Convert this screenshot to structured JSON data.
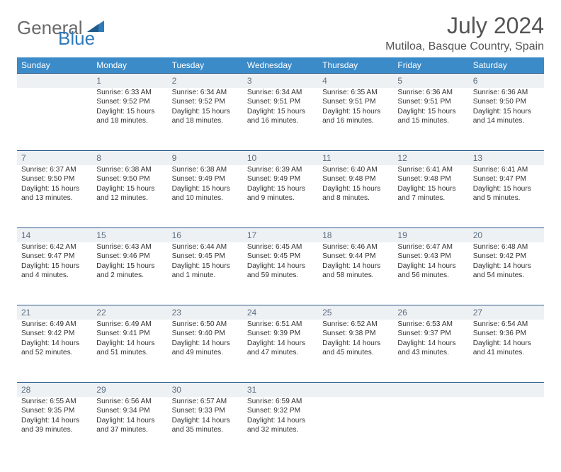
{
  "logo": {
    "word1": "General",
    "word2": "Blue"
  },
  "title": "July 2024",
  "location": "Mutiloa, Basque Country, Spain",
  "colors": {
    "header_bg": "#3b8bc9",
    "header_text": "#ffffff",
    "daynum_bg": "#eef1f4",
    "daynum_border": "#2a5a8a",
    "daynum_color": "#5d6e80",
    "body_text": "#333333",
    "logo_gray": "#6a6a6a",
    "logo_blue": "#2f7ab8",
    "title_color": "#555555"
  },
  "day_headers": [
    "Sunday",
    "Monday",
    "Tuesday",
    "Wednesday",
    "Thursday",
    "Friday",
    "Saturday"
  ],
  "weeks": [
    [
      {
        "n": "",
        "l1": "",
        "l2": "",
        "l3": "",
        "l4": ""
      },
      {
        "n": "1",
        "l1": "Sunrise: 6:33 AM",
        "l2": "Sunset: 9:52 PM",
        "l3": "Daylight: 15 hours",
        "l4": "and 18 minutes."
      },
      {
        "n": "2",
        "l1": "Sunrise: 6:34 AM",
        "l2": "Sunset: 9:52 PM",
        "l3": "Daylight: 15 hours",
        "l4": "and 18 minutes."
      },
      {
        "n": "3",
        "l1": "Sunrise: 6:34 AM",
        "l2": "Sunset: 9:51 PM",
        "l3": "Daylight: 15 hours",
        "l4": "and 16 minutes."
      },
      {
        "n": "4",
        "l1": "Sunrise: 6:35 AM",
        "l2": "Sunset: 9:51 PM",
        "l3": "Daylight: 15 hours",
        "l4": "and 16 minutes."
      },
      {
        "n": "5",
        "l1": "Sunrise: 6:36 AM",
        "l2": "Sunset: 9:51 PM",
        "l3": "Daylight: 15 hours",
        "l4": "and 15 minutes."
      },
      {
        "n": "6",
        "l1": "Sunrise: 6:36 AM",
        "l2": "Sunset: 9:50 PM",
        "l3": "Daylight: 15 hours",
        "l4": "and 14 minutes."
      }
    ],
    [
      {
        "n": "7",
        "l1": "Sunrise: 6:37 AM",
        "l2": "Sunset: 9:50 PM",
        "l3": "Daylight: 15 hours",
        "l4": "and 13 minutes."
      },
      {
        "n": "8",
        "l1": "Sunrise: 6:38 AM",
        "l2": "Sunset: 9:50 PM",
        "l3": "Daylight: 15 hours",
        "l4": "and 12 minutes."
      },
      {
        "n": "9",
        "l1": "Sunrise: 6:38 AM",
        "l2": "Sunset: 9:49 PM",
        "l3": "Daylight: 15 hours",
        "l4": "and 10 minutes."
      },
      {
        "n": "10",
        "l1": "Sunrise: 6:39 AM",
        "l2": "Sunset: 9:49 PM",
        "l3": "Daylight: 15 hours",
        "l4": "and 9 minutes."
      },
      {
        "n": "11",
        "l1": "Sunrise: 6:40 AM",
        "l2": "Sunset: 9:48 PM",
        "l3": "Daylight: 15 hours",
        "l4": "and 8 minutes."
      },
      {
        "n": "12",
        "l1": "Sunrise: 6:41 AM",
        "l2": "Sunset: 9:48 PM",
        "l3": "Daylight: 15 hours",
        "l4": "and 7 minutes."
      },
      {
        "n": "13",
        "l1": "Sunrise: 6:41 AM",
        "l2": "Sunset: 9:47 PM",
        "l3": "Daylight: 15 hours",
        "l4": "and 5 minutes."
      }
    ],
    [
      {
        "n": "14",
        "l1": "Sunrise: 6:42 AM",
        "l2": "Sunset: 9:47 PM",
        "l3": "Daylight: 15 hours",
        "l4": "and 4 minutes."
      },
      {
        "n": "15",
        "l1": "Sunrise: 6:43 AM",
        "l2": "Sunset: 9:46 PM",
        "l3": "Daylight: 15 hours",
        "l4": "and 2 minutes."
      },
      {
        "n": "16",
        "l1": "Sunrise: 6:44 AM",
        "l2": "Sunset: 9:45 PM",
        "l3": "Daylight: 15 hours",
        "l4": "and 1 minute."
      },
      {
        "n": "17",
        "l1": "Sunrise: 6:45 AM",
        "l2": "Sunset: 9:45 PM",
        "l3": "Daylight: 14 hours",
        "l4": "and 59 minutes."
      },
      {
        "n": "18",
        "l1": "Sunrise: 6:46 AM",
        "l2": "Sunset: 9:44 PM",
        "l3": "Daylight: 14 hours",
        "l4": "and 58 minutes."
      },
      {
        "n": "19",
        "l1": "Sunrise: 6:47 AM",
        "l2": "Sunset: 9:43 PM",
        "l3": "Daylight: 14 hours",
        "l4": "and 56 minutes."
      },
      {
        "n": "20",
        "l1": "Sunrise: 6:48 AM",
        "l2": "Sunset: 9:42 PM",
        "l3": "Daylight: 14 hours",
        "l4": "and 54 minutes."
      }
    ],
    [
      {
        "n": "21",
        "l1": "Sunrise: 6:49 AM",
        "l2": "Sunset: 9:42 PM",
        "l3": "Daylight: 14 hours",
        "l4": "and 52 minutes."
      },
      {
        "n": "22",
        "l1": "Sunrise: 6:49 AM",
        "l2": "Sunset: 9:41 PM",
        "l3": "Daylight: 14 hours",
        "l4": "and 51 minutes."
      },
      {
        "n": "23",
        "l1": "Sunrise: 6:50 AM",
        "l2": "Sunset: 9:40 PM",
        "l3": "Daylight: 14 hours",
        "l4": "and 49 minutes."
      },
      {
        "n": "24",
        "l1": "Sunrise: 6:51 AM",
        "l2": "Sunset: 9:39 PM",
        "l3": "Daylight: 14 hours",
        "l4": "and 47 minutes."
      },
      {
        "n": "25",
        "l1": "Sunrise: 6:52 AM",
        "l2": "Sunset: 9:38 PM",
        "l3": "Daylight: 14 hours",
        "l4": "and 45 minutes."
      },
      {
        "n": "26",
        "l1": "Sunrise: 6:53 AM",
        "l2": "Sunset: 9:37 PM",
        "l3": "Daylight: 14 hours",
        "l4": "and 43 minutes."
      },
      {
        "n": "27",
        "l1": "Sunrise: 6:54 AM",
        "l2": "Sunset: 9:36 PM",
        "l3": "Daylight: 14 hours",
        "l4": "and 41 minutes."
      }
    ],
    [
      {
        "n": "28",
        "l1": "Sunrise: 6:55 AM",
        "l2": "Sunset: 9:35 PM",
        "l3": "Daylight: 14 hours",
        "l4": "and 39 minutes."
      },
      {
        "n": "29",
        "l1": "Sunrise: 6:56 AM",
        "l2": "Sunset: 9:34 PM",
        "l3": "Daylight: 14 hours",
        "l4": "and 37 minutes."
      },
      {
        "n": "30",
        "l1": "Sunrise: 6:57 AM",
        "l2": "Sunset: 9:33 PM",
        "l3": "Daylight: 14 hours",
        "l4": "and 35 minutes."
      },
      {
        "n": "31",
        "l1": "Sunrise: 6:59 AM",
        "l2": "Sunset: 9:32 PM",
        "l3": "Daylight: 14 hours",
        "l4": "and 32 minutes."
      },
      {
        "n": "",
        "l1": "",
        "l2": "",
        "l3": "",
        "l4": ""
      },
      {
        "n": "",
        "l1": "",
        "l2": "",
        "l3": "",
        "l4": ""
      },
      {
        "n": "",
        "l1": "",
        "l2": "",
        "l3": "",
        "l4": ""
      }
    ]
  ]
}
